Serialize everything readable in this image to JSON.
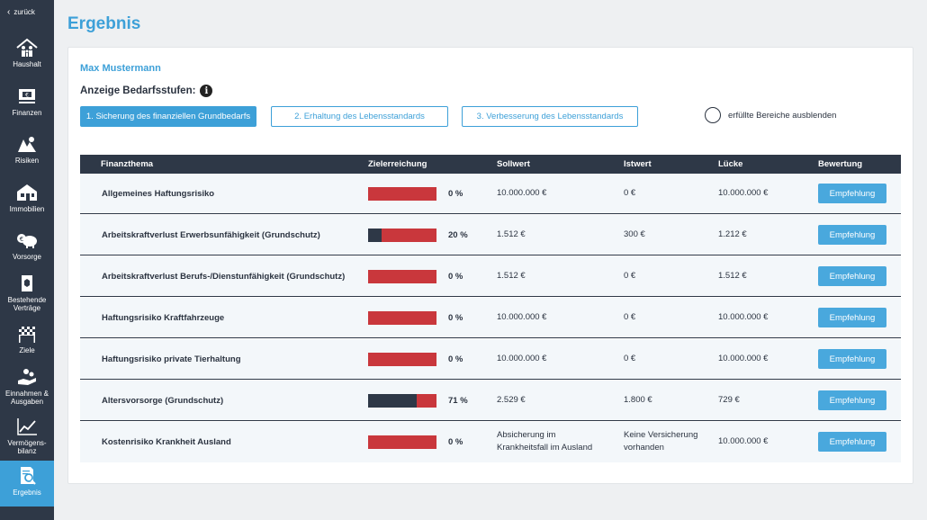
{
  "sidebar": {
    "back": "zurück",
    "items": [
      {
        "label": "Haushalt"
      },
      {
        "label": "Finanzen"
      },
      {
        "label": "Risiken"
      },
      {
        "label": "Immobilien"
      },
      {
        "label": "Vorsorge"
      },
      {
        "label1": "Bestehende",
        "label2": "Verträge"
      },
      {
        "label": "Ziele"
      },
      {
        "label1": "Einnahmen &",
        "label2": "Ausgaben"
      },
      {
        "label1": "Vermögens-",
        "label2": "bilanz"
      },
      {
        "label": "Ergebnis"
      }
    ]
  },
  "header": {
    "title": "Ergebnis"
  },
  "client": {
    "name": "Max Mustermann"
  },
  "levels": {
    "label": "Anzeige Bedarfsstufen:",
    "buttons": [
      "1. Sicherung des finanziellen Grundbedarfs",
      "2. Erhaltung des Lebensstandards",
      "3. Verbesserung des Lebensstandards"
    ],
    "hide_fulfilled": "erfüllte Bereiche ausblenden"
  },
  "table": {
    "headers": [
      "Finanzthema",
      "Zielerreichung",
      "Sollwert",
      "Istwert",
      "Lücke",
      "Bewertung"
    ],
    "button_label": "Empfehlung",
    "rows": [
      {
        "topic": "Allgemeines Haftungsrisiko",
        "percent": 0,
        "percent_label": "0 %",
        "soll": "10.000.000 €",
        "ist": "0 €",
        "luecke": "10.000.000 €"
      },
      {
        "topic": "Arbeitskraftverlust Erwerbsunfähigkeit (Grundschutz)",
        "percent": 20,
        "percent_label": "20 %",
        "soll": "1.512 €",
        "ist": "300 €",
        "luecke": "1.212 €"
      },
      {
        "topic": "Arbeitskraftverlust Berufs-/Dienstunfähigkeit (Grundschutz)",
        "percent": 0,
        "percent_label": "0 %",
        "soll": "1.512 €",
        "ist": "0 €",
        "luecke": "1.512 €"
      },
      {
        "topic": "Haftungsrisiko Kraftfahrzeuge",
        "percent": 0,
        "percent_label": "0 %",
        "soll": "10.000.000 €",
        "ist": "0 €",
        "luecke": "10.000.000 €"
      },
      {
        "topic": "Haftungsrisiko private Tierhaltung",
        "percent": 0,
        "percent_label": "0 %",
        "soll": "10.000.000 €",
        "ist": "0 €",
        "luecke": "10.000.000 €"
      },
      {
        "topic": "Altersvorsorge (Grundschutz)",
        "percent": 71,
        "percent_label": "71 %",
        "soll": "2.529 €",
        "ist": "1.800 €",
        "luecke": "729 €"
      },
      {
        "topic": "Kostenrisiko Krankheit Ausland",
        "percent": 0,
        "percent_label": "0 %",
        "soll_l1": "Absicherung im",
        "soll_l2": "Krankheitsfall im Ausland",
        "ist_l1": "Keine Versicherung",
        "ist_l2": "vorhanden",
        "luecke": "10.000.000 €"
      }
    ]
  },
  "colors": {
    "accent": "#3da0d8",
    "sidebar": "#2e3847",
    "bar_gap": "#c9373c",
    "bar_fill": "#2e3847"
  }
}
